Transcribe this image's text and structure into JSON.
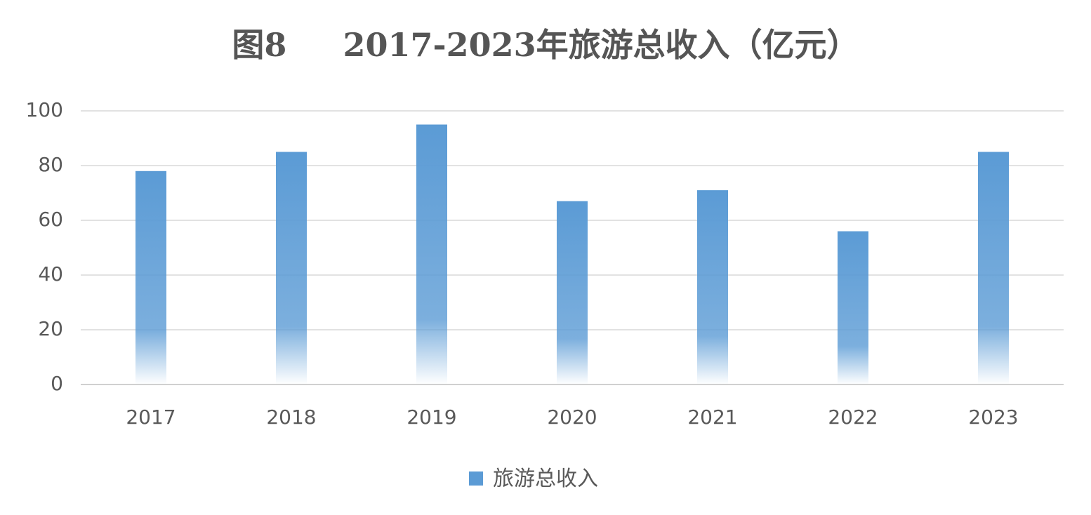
{
  "chart_data": {
    "type": "bar",
    "title": "图8     2017-2023年旅游总收入（亿元）",
    "categories": [
      "2017",
      "2018",
      "2019",
      "2020",
      "2021",
      "2022",
      "2023"
    ],
    "series": [
      {
        "name": "旅游总收入",
        "color": "#5b9bd5",
        "values": [
          78,
          85,
          95,
          67,
          71,
          56,
          85
        ]
      }
    ],
    "ylim": [
      0,
      100
    ],
    "yticks": [
      0,
      20,
      40,
      60,
      80,
      100
    ],
    "grid": true,
    "legend": "bottom"
  }
}
